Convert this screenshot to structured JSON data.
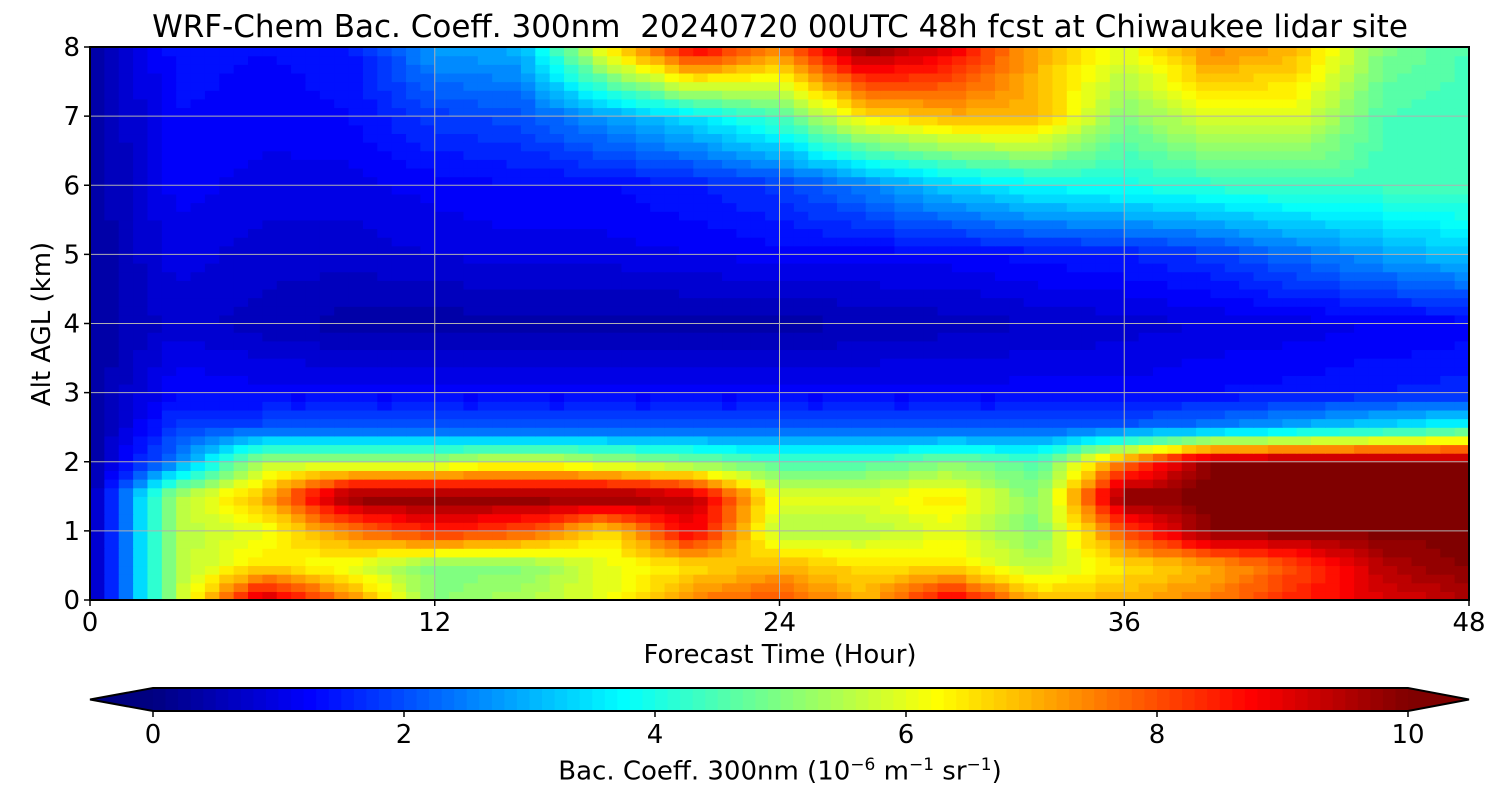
{
  "chart_data": {
    "type": "heatmap",
    "title": "WRF-Chem Bac. Coeff. 300nm  20240720 00UTC 48h fcst at Chiwaukee lidar site",
    "xlabel": "Forecast Time (Hour)",
    "ylabel": "Alt AGL (km)",
    "xlim": [
      0,
      48
    ],
    "ylim": [
      0,
      8
    ],
    "x_ticks": [
      0,
      12,
      24,
      36,
      48
    ],
    "y_ticks": [
      0,
      1,
      2,
      3,
      4,
      5,
      6,
      7,
      8
    ],
    "grid": true,
    "x": [
      0,
      3,
      6,
      9,
      12,
      15,
      18,
      21,
      24,
      27,
      30,
      33,
      36,
      39,
      42,
      45,
      48
    ],
    "y": [
      0,
      0.5,
      1,
      1.5,
      2,
      2.5,
      3,
      4,
      5,
      6,
      7,
      8
    ],
    "z": [
      [
        0.3,
        5.5,
        9.5,
        7.5,
        5.0,
        5.5,
        6.0,
        7.5,
        8.0,
        7.0,
        9.0,
        7.0,
        7.0,
        7.5,
        8.5,
        9.0,
        9.5
      ],
      [
        0.3,
        5.5,
        6.5,
        6.0,
        5.0,
        5.0,
        6.0,
        6.5,
        7.0,
        6.5,
        6.5,
        5.5,
        6.5,
        7.0,
        8.0,
        9.5,
        10.0
      ],
      [
        0.3,
        5.5,
        6.0,
        7.5,
        8.5,
        8.0,
        6.5,
        9.0,
        5.5,
        5.5,
        6.0,
        5.0,
        8.0,
        10.0,
        10.0,
        10.0,
        10.0
      ],
      [
        0.3,
        5.5,
        7.0,
        10.0,
        10.0,
        10.0,
        10.0,
        9.5,
        6.0,
        6.0,
        6.5,
        5.0,
        10.0,
        10.0,
        10.0,
        10.0,
        10.0
      ],
      [
        0.3,
        2.5,
        5.5,
        5.5,
        5.5,
        6.0,
        5.5,
        5.0,
        4.5,
        4.5,
        5.0,
        4.5,
        7.5,
        10.0,
        10.0,
        10.0,
        10.0
      ],
      [
        0.3,
        1.8,
        2.0,
        2.0,
        2.0,
        2.0,
        2.0,
        2.0,
        2.0,
        2.0,
        2.0,
        2.0,
        2.2,
        2.5,
        3.0,
        3.5,
        4.0
      ],
      [
        0.3,
        1.3,
        1.2,
        1.2,
        1.2,
        1.2,
        1.2,
        1.2,
        1.2,
        1.2,
        1.2,
        1.2,
        1.2,
        1.3,
        1.4,
        1.5,
        1.6
      ],
      [
        0.3,
        0.8,
        0.6,
        0.4,
        0.4,
        0.4,
        0.4,
        0.4,
        0.4,
        0.5,
        0.6,
        0.7,
        0.8,
        0.9,
        1.0,
        1.1,
        1.2
      ],
      [
        0.3,
        1.0,
        0.8,
        0.8,
        0.9,
        1.0,
        1.0,
        1.1,
        1.2,
        1.2,
        1.2,
        1.4,
        1.5,
        1.8,
        2.3,
        2.8,
        3.2
      ],
      [
        0.3,
        1.2,
        1.0,
        1.0,
        1.2,
        1.3,
        1.3,
        1.5,
        1.8,
        2.5,
        3.3,
        3.8,
        4.0,
        4.2,
        4.4,
        4.4,
        4.5
      ],
      [
        0.3,
        1.3,
        1.2,
        1.3,
        1.8,
        2.0,
        2.8,
        3.5,
        4.5,
        6.5,
        7.0,
        7.0,
        5.0,
        6.0,
        6.0,
        4.5,
        4.3
      ],
      [
        0.3,
        1.4,
        1.3,
        1.4,
        2.8,
        3.0,
        6.5,
        9.0,
        7.5,
        10.0,
        9.0,
        7.0,
        6.0,
        7.5,
        7.0,
        5.0,
        4.5
      ]
    ],
    "colorbar": {
      "label": "Bac. Coeff. 300nm  (10",
      "label_exp1": "−6",
      "label_mid": " m",
      "label_exp2": "−1",
      "label_mid2": " sr",
      "label_exp3": "−1",
      "label_end": ")",
      "ticks": [
        0,
        2,
        4,
        6,
        8,
        10
      ],
      "range": [
        0,
        10
      ],
      "extend": "both",
      "colormap": "jet"
    }
  }
}
